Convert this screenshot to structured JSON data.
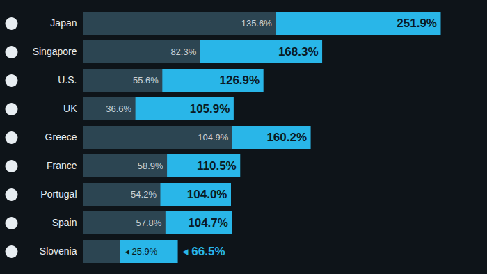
{
  "chart_data": {
    "type": "bar",
    "orientation": "horizontal",
    "categories": [
      "Japan",
      "Singapore",
      "U.S.",
      "UK",
      "Greece",
      "France",
      "Portugal",
      "Spain",
      "Slovenia"
    ],
    "series": [
      {
        "color": "#29b6e8",
        "values": [
          251.9,
          168.3,
          126.9,
          105.9,
          160.2,
          110.5,
          104.0,
          104.7,
          66.5
        ],
        "value_labels": [
          "251.9%",
          "168.3%",
          "126.9%",
          "105.9%",
          "160.2%",
          "110.5%",
          "104.0%",
          "104.7%",
          "◂ 66.5%"
        ]
      },
      {
        "color": "#2c4552",
        "values": [
          135.6,
          82.3,
          55.6,
          36.6,
          104.9,
          58.9,
          54.2,
          57.8,
          25.9
        ],
        "value_labels": [
          "135.6%",
          "82.3%",
          "55.6%",
          "36.6%",
          "104.9%",
          "58.9%",
          "54.2%",
          "57.8%",
          "◂ 25.9%"
        ]
      }
    ],
    "xlim": [
      0,
      260
    ],
    "data_labels": true,
    "tick_labels": "y",
    "grid": false
  }
}
